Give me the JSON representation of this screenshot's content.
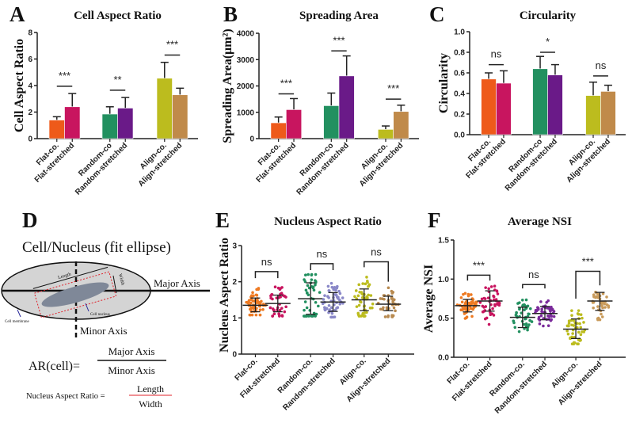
{
  "chart_data": [
    {
      "id": "A",
      "type": "bar",
      "letter": "A",
      "title": "Cell Aspect Ratio",
      "ylabel": "Cell Aspect Ratio",
      "ylim": [
        0,
        8
      ],
      "yticks": [
        "0",
        "2",
        "4",
        "6",
        "8"
      ],
      "categories": [
        "Flat-co.",
        "Flat-stretched",
        "Random-co",
        "Random-stretched",
        "Align-co.",
        "Align-stretched"
      ],
      "values": [
        1.4,
        2.4,
        1.85,
        2.3,
        4.55,
        3.3
      ],
      "errors": [
        0.25,
        1.0,
        0.55,
        0.8,
        1.2,
        0.5
      ],
      "colors": [
        "#ee5a1a",
        "#c8155f",
        "#229060",
        "#6a1a88",
        "#bcbc1e",
        "#c08a4a"
      ],
      "significance": [
        {
          "pair": [
            0,
            1
          ],
          "label": "***",
          "level": 3.95
        },
        {
          "pair": [
            2,
            3
          ],
          "label": "**",
          "level": 3.65
        },
        {
          "pair": [
            4,
            5
          ],
          "label": "***",
          "level": 6.3
        }
      ]
    },
    {
      "id": "B",
      "type": "bar",
      "letter": "B",
      "title": "Spreading Area",
      "ylabel": "Spreading Area(μm²)",
      "ylim": [
        0,
        4000
      ],
      "yticks": [
        "0",
        "1000",
        "2000",
        "3000",
        "4000"
      ],
      "categories": [
        "Flat-co.",
        "Flat-stretched",
        "Random-co",
        "Random-stretched",
        "Align-co.",
        "Align-stretched"
      ],
      "values": [
        600,
        1100,
        1250,
        2380,
        350,
        1030
      ],
      "errors": [
        220,
        420,
        480,
        760,
        130,
        240
      ],
      "colors": [
        "#ee5a1a",
        "#c8155f",
        "#229060",
        "#6a1a88",
        "#bcbc1e",
        "#c08a4a"
      ],
      "significance": [
        {
          "pair": [
            0,
            1
          ],
          "label": "***",
          "level": 1700
        },
        {
          "pair": [
            2,
            3
          ],
          "label": "***",
          "level": 3330
        },
        {
          "pair": [
            4,
            5
          ],
          "label": "***",
          "level": 1500
        }
      ]
    },
    {
      "id": "C",
      "type": "bar",
      "letter": "C",
      "title": "Circularity",
      "ylabel": "Circularity",
      "ylim": [
        0,
        1.0
      ],
      "yticks": [
        "0.0",
        "0.2",
        "0.4",
        "0.6",
        "0.8",
        "1.0"
      ],
      "categories": [
        "Flat-co.",
        "Flat-stretched",
        "Random-co",
        "Random-stretched",
        "Align-co.",
        "Align-stretched"
      ],
      "values": [
        0.54,
        0.5,
        0.64,
        0.58,
        0.38,
        0.42
      ],
      "errors": [
        0.06,
        0.12,
        0.12,
        0.1,
        0.13,
        0.06
      ],
      "colors": [
        "#ee5a1a",
        "#c8155f",
        "#229060",
        "#6a1a88",
        "#bcbc1e",
        "#c08a4a"
      ],
      "significance": [
        {
          "pair": [
            0,
            1
          ],
          "label": "ns",
          "level": 0.68
        },
        {
          "pair": [
            2,
            3
          ],
          "label": "*",
          "level": 0.8
        },
        {
          "pair": [
            4,
            5
          ],
          "label": "ns",
          "level": 0.57
        }
      ]
    },
    {
      "id": "E",
      "type": "scatter",
      "letter": "E",
      "title": "Nucleus Aspect Ratio",
      "ylabel": "Nucleus Aspect Ratio",
      "ylim": [
        0,
        3
      ],
      "yticks": [
        "0",
        "1",
        "2",
        "3"
      ],
      "categories": [
        "Flat-co.",
        "Flat-stretched",
        "Random-co.",
        "Random-stretched",
        "Align-co.",
        "Align-stretched"
      ],
      "means": [
        1.35,
        1.4,
        1.53,
        1.44,
        1.5,
        1.38
      ],
      "sd_low": [
        1.17,
        1.17,
        1.1,
        1.18,
        1.2,
        1.2
      ],
      "sd_high": [
        1.55,
        1.63,
        1.97,
        1.7,
        1.8,
        1.6
      ],
      "min": [
        1.08,
        1.05,
        1.05,
        1.02,
        1.05,
        1.03
      ],
      "max": [
        1.92,
        1.92,
        2.2,
        2.1,
        2.2,
        1.88
      ],
      "n": [
        55,
        40,
        45,
        55,
        50,
        40
      ],
      "colors": [
        "#ee7a22",
        "#c8155f",
        "#229060",
        "#8a88c8",
        "#bcbc1e",
        "#b88a50"
      ],
      "significance": [
        {
          "pair": [
            0,
            1
          ],
          "label": "ns",
          "level": 2.28,
          "legs": [
            2.1,
            2.1
          ]
        },
        {
          "pair": [
            2,
            3
          ],
          "label": "ns",
          "level": 2.5,
          "legs": [
            2.32,
            2.32
          ]
        },
        {
          "pair": [
            4,
            5
          ],
          "label": "ns",
          "level": 2.55,
          "legs": [
            2.4,
            2.0
          ]
        }
      ]
    },
    {
      "id": "F",
      "type": "scatter",
      "letter": "F",
      "title": "Average NSI",
      "ylabel": "Average NSI",
      "ylim": [
        0,
        1.5
      ],
      "yticks": [
        "0.0",
        "0.5",
        "1.0",
        "1.5"
      ],
      "categories": [
        "Flat-co.",
        "Flat-stretched",
        "Random-co.",
        "Random-stretched",
        "Align-co.",
        "Align-stretched"
      ],
      "means": [
        0.66,
        0.72,
        0.51,
        0.56,
        0.36,
        0.72
      ],
      "sd_low": [
        0.58,
        0.59,
        0.38,
        0.48,
        0.24,
        0.6
      ],
      "sd_high": [
        0.74,
        0.85,
        0.64,
        0.65,
        0.49,
        0.83
      ],
      "min": [
        0.45,
        0.42,
        0.28,
        0.4,
        0.17,
        0.48
      ],
      "max": [
        0.83,
        0.91,
        0.79,
        0.79,
        0.65,
        0.9
      ],
      "n": [
        55,
        45,
        45,
        50,
        50,
        40
      ],
      "colors": [
        "#ee7a22",
        "#c8155f",
        "#229060",
        "#7a2a9a",
        "#bcbc1e",
        "#c89a5a"
      ],
      "significance": [
        {
          "pair": [
            0,
            1
          ],
          "label": "***",
          "level": 1.05,
          "legs": [
            0.98,
            0.98
          ]
        },
        {
          "pair": [
            2,
            3
          ],
          "label": "ns",
          "level": 0.93,
          "legs": [
            0.88,
            0.88
          ]
        },
        {
          "pair": [
            4,
            5
          ],
          "label": "***",
          "level": 1.1,
          "legs": [
            0.75,
            0.92
          ]
        }
      ]
    }
  ],
  "diagram": {
    "letter": "D",
    "title": "Cell/Nucleus (fit ellipse)",
    "major_axis": "Major Axis",
    "minor_axis": "Minor Axis",
    "length": "Length",
    "width": "Width",
    "cell_nucleus": "Cell nucleus",
    "cell_membrane": "Cell membrane",
    "ar_lhs": "AR(cell)=",
    "ar_num": "Major Axis",
    "ar_den": "Minor Axis",
    "nar_lhs": "Nucleus Aspect Ratio =",
    "nar_num": "Length",
    "nar_den": "Width",
    "red": "#e0202a"
  }
}
